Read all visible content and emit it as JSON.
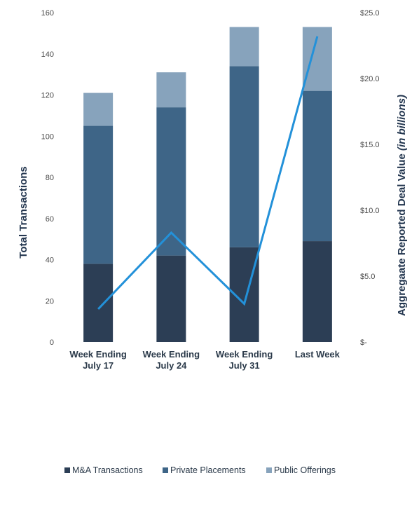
{
  "chart_data": {
    "type": "bar",
    "stacked": true,
    "categories": [
      "Week Ending\nJuly 17",
      "Week Ending\nJuly 24",
      "Week Ending\nJuly 31",
      "Last Week"
    ],
    "series": [
      {
        "name": "M&A Transactions",
        "values": [
          38,
          42,
          46,
          49
        ],
        "color": "#2c3e55"
      },
      {
        "name": "Private Placements",
        "values": [
          67,
          72,
          88,
          73
        ],
        "color": "#3e6587"
      },
      {
        "name": "Public Offerings",
        "values": [
          16,
          17,
          19,
          31
        ],
        "color": "#87a3bc"
      }
    ],
    "line_series": {
      "axis": "secondary",
      "values": [
        2.5,
        8.3,
        2.9,
        23.2
      ],
      "color": "#2391d9"
    },
    "ylabel": "Total Transactions",
    "y2label_main": "Aggregaate Reported Deal Value ",
    "y2label_italic": "(in billions)",
    "ylim": [
      0,
      160
    ],
    "yticks": [
      "0",
      "20",
      "40",
      "60",
      "80",
      "100",
      "120",
      "140",
      "160"
    ],
    "y2lim": [
      0,
      25
    ],
    "y2ticks": [
      "$-",
      "$5.0",
      "$10.0",
      "$15.0",
      "$20.0",
      "$25.0"
    ],
    "grid": false,
    "legend_position": "bottom"
  }
}
